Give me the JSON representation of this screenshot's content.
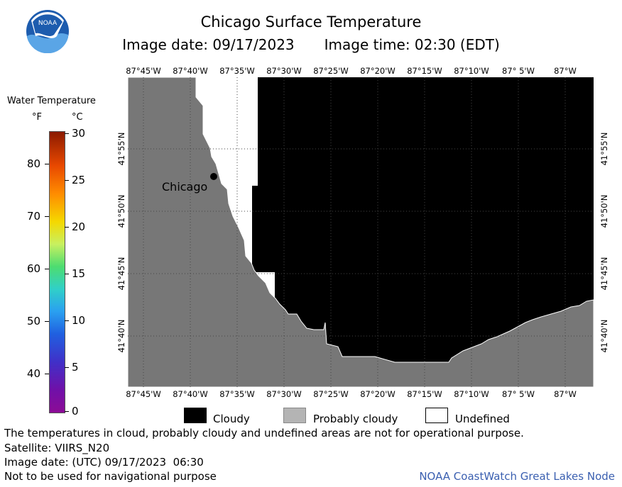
{
  "header": {
    "title": "Chicago Surface Temperature",
    "image_date_label": "Image date: 09/17/2023",
    "image_time_label": "Image time: 02:30 (EDT)",
    "logo_text": "NOAA"
  },
  "map": {
    "lon_labels": [
      "87°45'W",
      "87°40'W",
      "87°35'W",
      "87°30'W",
      "87°25'W",
      "87°20'W",
      "87°15'W",
      "87°10'W",
      "87° 5'W",
      "87°W"
    ],
    "lat_labels": [
      "41°55'N",
      "41°50'N",
      "41°45'N",
      "41°40'N"
    ],
    "place_label": "Chicago",
    "colors": {
      "land": "#777777",
      "cloudy": "#000000",
      "undefined": "#ffffff",
      "probably_cloudy": "#b4b4b4"
    }
  },
  "scale": {
    "title": "Water Temperature",
    "unit_f": "°F",
    "unit_c": "°C",
    "f_labels": [
      "80",
      "70",
      "60",
      "50",
      "40"
    ],
    "c_labels": [
      "30",
      "25",
      "20",
      "15",
      "10",
      "5",
      "0"
    ]
  },
  "legend": {
    "cloudy": "Cloudy",
    "probably_cloudy": "Probably cloudy",
    "undefined": "Undefined"
  },
  "footer": {
    "note": "The temperatures in cloud, probably cloudy and undefined areas are not for operational purpose.",
    "satellite": "Satellite: VIIRS_N20",
    "utc_date": "Image date: (UTC) 09/17/2023  06:30",
    "nav_warning": "Not to be used for navigational purpose",
    "credit": "NOAA CoastWatch Great Lakes Node"
  }
}
